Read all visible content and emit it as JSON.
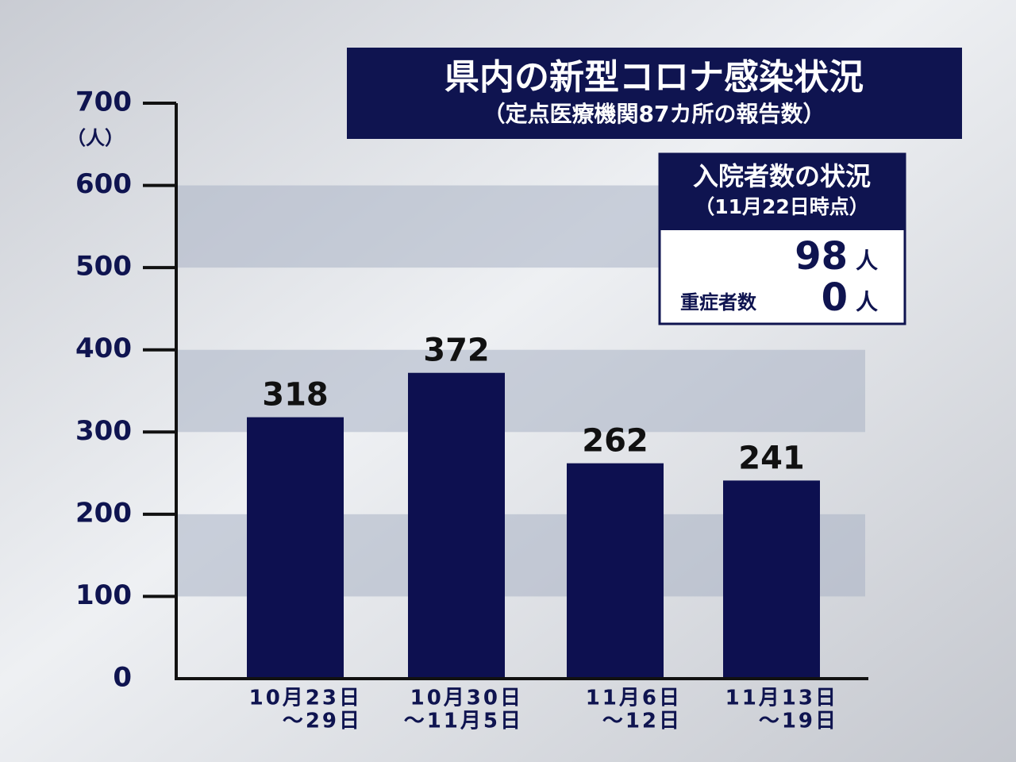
{
  "chart_data": {
    "type": "bar",
    "title": "県内の新型コロナ感染状況",
    "subtitle": "（定点医療機関87カ所の報告数）",
    "y_label": "（人）",
    "categories": [
      [
        "10月23日",
        "～29日"
      ],
      [
        "10月30日",
        "～11月5日"
      ],
      [
        "11月6日",
        "～12日"
      ],
      [
        "11月13日",
        "～19日"
      ]
    ],
    "values": [
      318,
      372,
      262,
      241
    ],
    "color": "#0d1050",
    "ylim": [
      0,
      700
    ],
    "yticks": [
      0,
      100,
      200,
      300,
      400,
      500,
      600,
      700
    ],
    "grid_bands": true,
    "info_box": {
      "title": "入院者数の状況",
      "subtitle": "（11月22日時点）",
      "rows": [
        {
          "value": 98,
          "unit": "人"
        },
        {
          "label": "重症者数",
          "value": 0,
          "unit": "人"
        }
      ]
    }
  }
}
